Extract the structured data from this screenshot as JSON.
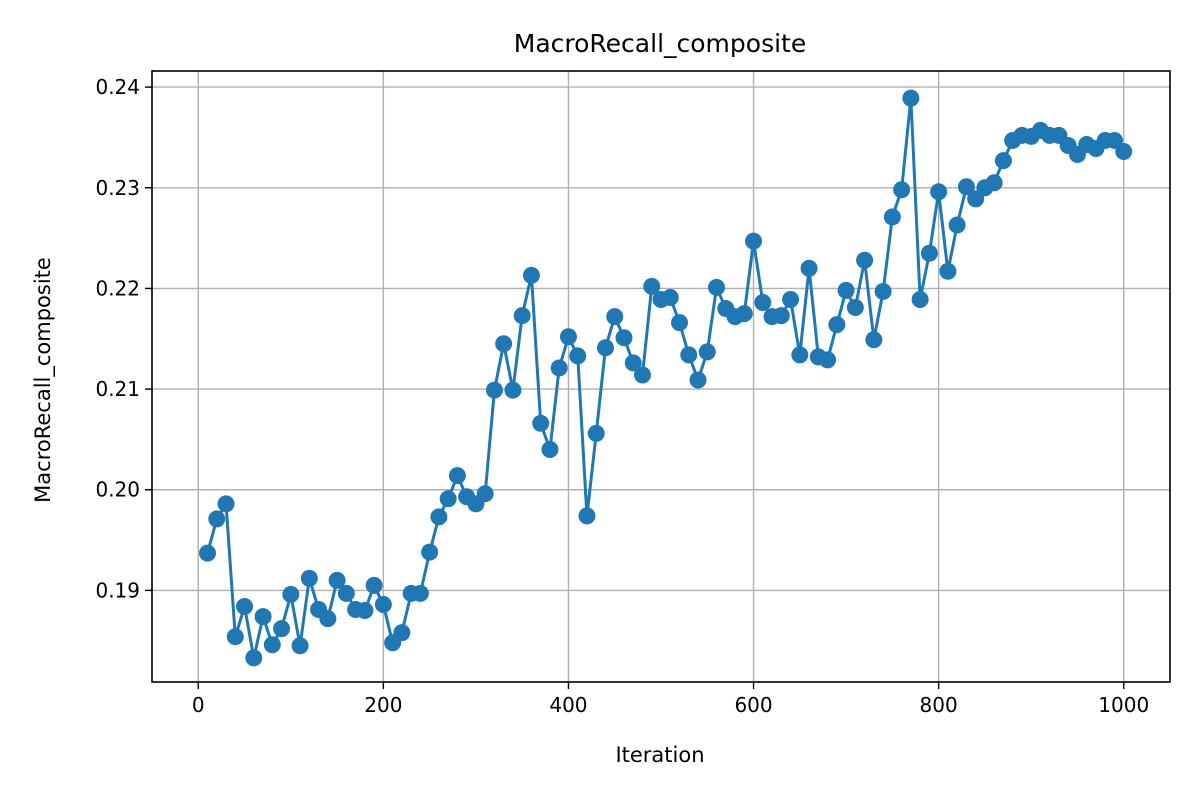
{
  "chart_data": {
    "type": "line",
    "title": "MacroRecall_composite",
    "xlabel": "Iteration",
    "ylabel": "MacroRecall_composite",
    "xlim": [
      -50,
      1050
    ],
    "ylim": [
      0.1809,
      0.2416
    ],
    "xticks": [
      0,
      200,
      400,
      600,
      800,
      1000
    ],
    "yticks": [
      0.19,
      0.2,
      0.21,
      0.22,
      0.23,
      0.24
    ],
    "grid": true,
    "color": "#1f77b4",
    "marker": "circle",
    "series": [
      {
        "x": [
          10,
          20,
          30,
          40,
          50,
          60,
          70,
          80,
          90,
          100,
          110,
          120,
          130,
          140,
          150,
          160,
          170,
          180,
          190,
          200,
          210,
          220,
          230,
          240,
          250,
          260,
          270,
          280,
          290,
          300,
          310,
          320,
          330,
          340,
          350,
          360,
          370,
          380,
          390,
          400,
          410,
          420,
          430,
          440,
          450,
          460,
          470,
          480,
          490,
          500,
          510,
          520,
          530,
          540,
          550,
          560,
          570,
          580,
          590,
          600,
          610,
          620,
          630,
          640,
          650,
          660,
          670,
          680,
          690,
          700,
          710,
          720,
          730,
          740,
          750,
          760,
          770,
          780,
          790,
          800,
          810,
          820,
          830,
          840,
          850,
          860,
          870,
          880,
          890,
          900,
          910,
          920,
          930,
          940,
          950,
          960,
          970,
          980,
          990,
          1000
        ],
        "y": [
          0.1937,
          0.1971,
          0.1986,
          0.1854,
          0.1884,
          0.1833,
          0.1874,
          0.1846,
          0.1862,
          0.1896,
          0.1845,
          0.1912,
          0.1881,
          0.1872,
          0.191,
          0.1897,
          0.1881,
          0.188,
          0.1905,
          0.1886,
          0.1848,
          0.1858,
          0.1897,
          0.1897,
          0.1938,
          0.1973,
          0.1991,
          0.2014,
          0.1993,
          0.1986,
          0.1996,
          0.2099,
          0.2145,
          0.2099,
          0.2173,
          0.2213,
          0.2066,
          0.204,
          0.2121,
          0.2152,
          0.2133,
          0.1974,
          0.2056,
          0.2141,
          0.2172,
          0.2151,
          0.2126,
          0.2114,
          0.2202,
          0.2189,
          0.2191,
          0.2166,
          0.2134,
          0.2109,
          0.2137,
          0.2201,
          0.218,
          0.2172,
          0.2175,
          0.2247,
          0.2186,
          0.2172,
          0.2173,
          0.2189,
          0.2134,
          0.222,
          0.2132,
          0.2129,
          0.2164,
          0.2198,
          0.2181,
          0.2228,
          0.2149,
          0.2197,
          0.2271,
          0.2298,
          0.2389,
          0.2189,
          0.2235,
          0.2296,
          0.2217,
          0.2263,
          0.2301,
          0.2289,
          0.23,
          0.2305,
          0.2327,
          0.2347,
          0.2352,
          0.2351,
          0.2357,
          0.2352,
          0.2352,
          0.2342,
          0.2333,
          0.2343,
          0.2339,
          0.2347,
          0.2347,
          0.2336
        ]
      }
    ]
  }
}
